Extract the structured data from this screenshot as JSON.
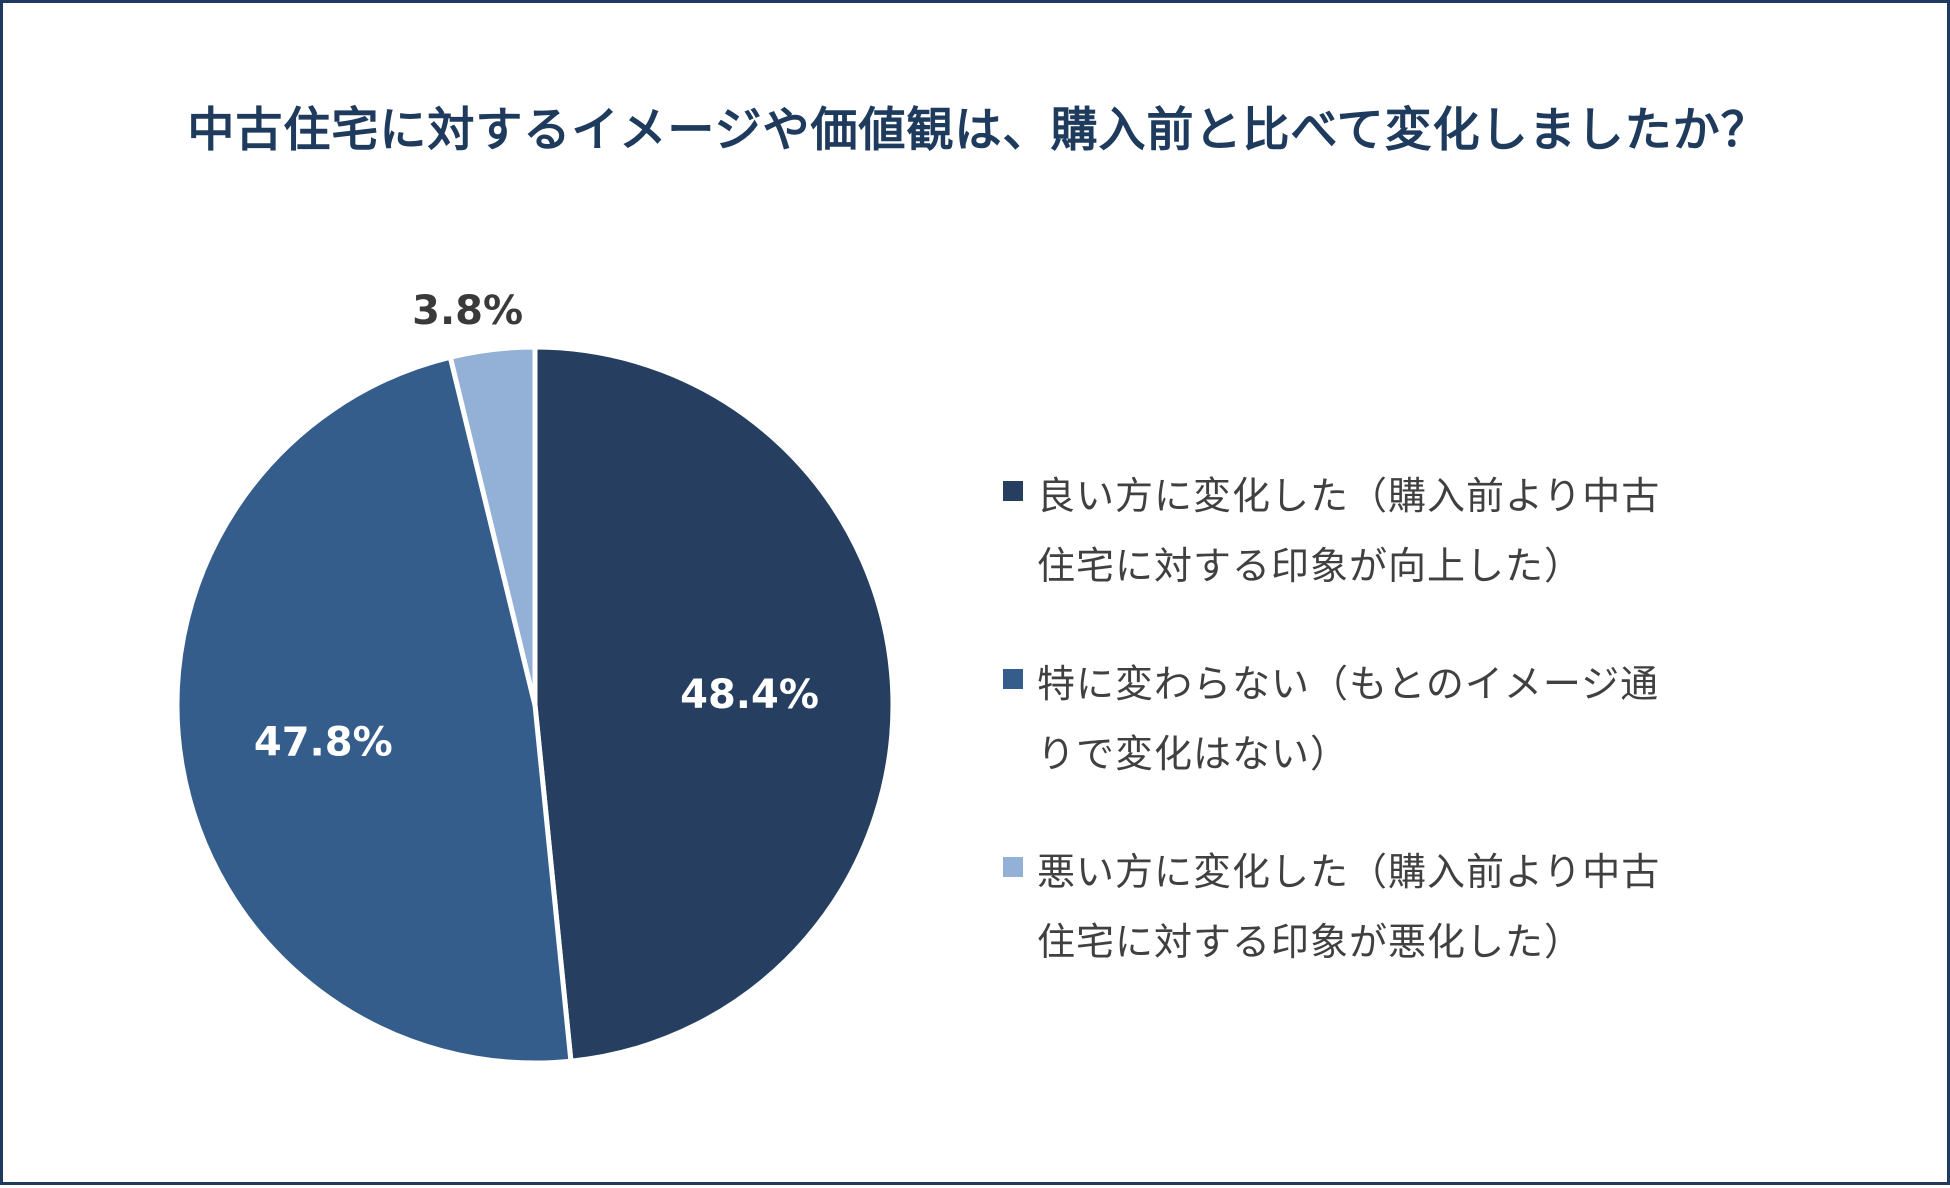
{
  "chart_data": {
    "type": "pie",
    "title": "中古住宅に対するイメージや価値観は、購入前と比べて変化しましたか？",
    "slices": [
      {
        "label_line1": "良い方に変化した（購入前より中古",
        "label_line2": "住宅に対する印象が向上した）",
        "value": 48.4,
        "value_label": "48.4%",
        "color": "#263f60"
      },
      {
        "label_line1": "特に変わらない（もとのイメージ通",
        "label_line2": "りで変化はない）",
        "value": 47.8,
        "value_label": "47.8%",
        "color": "#355d8c"
      },
      {
        "label_line1": "悪い方に変化した（購入前より中古",
        "label_line2": "住宅に対する印象が悪化した）",
        "value": 3.8,
        "value_label": "3.8%",
        "color": "#93b1d6"
      }
    ],
    "legend_position": "right",
    "start_angle": "12 o'clock, clockwise"
  }
}
